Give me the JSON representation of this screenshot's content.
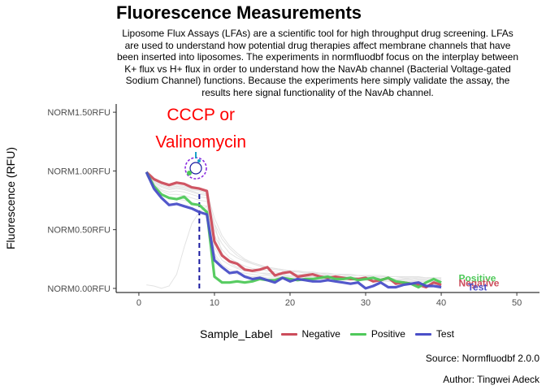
{
  "colors": {
    "negative": "#cc4c5b",
    "positive": "#4fc95a",
    "test": "#4a4fc8",
    "background_lines": "#e3e3e3",
    "annotation": "#ff0000",
    "marker_line": "#1a1aa0"
  },
  "chart_data": {
    "type": "line",
    "title": "Fluorescence Measurements",
    "subtitle": "Liposome Flux Assays (LFAs) are a scientific tool for high throughput drug screening. LFAs are used to understand how potential drug therapies affect membrane channels that have been inserted into liposomes. The experiments in normfluodbf focus on the interplay between K+ flux vs H+ flux in order to understand how the NavAb channel (Bacterial Voltage-gated Sodium Channel) functions. Because the experiments here simply validate the assay, the results here signal functionality of the NavAb channel.",
    "xlabel": "",
    "ylabel": "Fluorescence (RFU)",
    "xlim": [
      -3,
      53
    ],
    "ylim": [
      -0.035,
      1.57
    ],
    "x_ticks": [
      0,
      10,
      20,
      30,
      40,
      50
    ],
    "y_ticks": [
      {
        "value": 0.0,
        "label": "NORM0.00RFU"
      },
      {
        "value": 0.5,
        "label": "NORM0.50RFU"
      },
      {
        "value": 1.0,
        "label": "NORM1.00RFU"
      },
      {
        "value": 1.5,
        "label": "NORM1.50RFU"
      }
    ],
    "grid": false,
    "legend_title": "Sample_Label",
    "legend_position": "bottom",
    "x": [
      1,
      2,
      3,
      4,
      5,
      6,
      7,
      8,
      9,
      10,
      11,
      12,
      13,
      14,
      15,
      16,
      17,
      18,
      19,
      20,
      21,
      22,
      23,
      24,
      25,
      26,
      27,
      28,
      29,
      30,
      31,
      32,
      33,
      34,
      35,
      36,
      37,
      38,
      39,
      40
    ],
    "series": [
      {
        "name": "Negative",
        "color_key": "negative",
        "values": [
          0.99,
          0.93,
          0.9,
          0.88,
          0.9,
          0.89,
          0.86,
          0.85,
          0.83,
          0.4,
          0.28,
          0.23,
          0.21,
          0.16,
          0.15,
          0.16,
          0.18,
          0.11,
          0.13,
          0.14,
          0.1,
          0.11,
          0.12,
          0.1,
          0.09,
          0.1,
          0.09,
          0.08,
          0.08,
          0.09,
          0.06,
          0.07,
          0.09,
          0.04,
          0.05,
          0.04,
          0.03,
          0.01,
          0.05,
          0.03
        ]
      },
      {
        "name": "Positive",
        "color_key": "positive",
        "values": [
          0.99,
          0.87,
          0.8,
          0.77,
          0.76,
          0.78,
          0.72,
          0.71,
          0.65,
          0.1,
          0.05,
          0.05,
          0.06,
          0.05,
          0.06,
          0.08,
          0.07,
          0.07,
          0.09,
          0.08,
          0.07,
          0.08,
          0.08,
          0.09,
          0.1,
          0.08,
          0.08,
          0.09,
          0.07,
          0.08,
          0.09,
          0.07,
          0.09,
          0.06,
          0.05,
          0.04,
          0.01,
          0.05,
          0.08,
          0.05
        ]
      },
      {
        "name": "Test",
        "color_key": "test",
        "values": [
          0.99,
          0.85,
          0.77,
          0.71,
          0.72,
          0.7,
          0.68,
          0.65,
          0.63,
          0.24,
          0.18,
          0.13,
          0.14,
          0.1,
          0.08,
          0.09,
          0.07,
          0.05,
          0.09,
          0.06,
          0.08,
          0.07,
          0.06,
          0.06,
          0.07,
          0.06,
          0.05,
          0.04,
          0.05,
          0.0,
          0.02,
          0.05,
          0.01,
          0.01,
          0.03,
          0.04,
          0.05,
          0.02,
          0.02,
          0.01
        ]
      }
    ],
    "background_wells": [
      [
        0.03,
        0.02,
        0.0,
        0.02,
        0.12,
        0.35,
        0.55,
        0.65,
        0.7,
        0.55,
        0.3,
        0.22,
        0.18,
        0.16,
        0.14,
        0.13,
        0.12,
        0.12,
        0.11,
        0.11,
        0.1,
        0.1,
        0.1,
        0.09,
        0.1,
        0.09,
        0.1,
        0.09,
        0.09,
        0.08,
        0.09,
        0.08,
        0.09,
        0.08,
        0.08,
        0.09,
        0.08,
        0.08,
        0.09,
        0.08
      ],
      [
        0.98,
        0.9,
        0.86,
        0.84,
        0.85,
        0.84,
        0.82,
        0.8,
        0.79,
        0.45,
        0.33,
        0.26,
        0.22,
        0.19,
        0.17,
        0.16,
        0.15,
        0.14,
        0.13,
        0.13,
        0.12,
        0.12,
        0.11,
        0.11,
        0.11,
        0.1,
        0.1,
        0.1,
        0.09,
        0.09,
        0.09,
        0.09,
        0.08,
        0.08,
        0.08,
        0.08,
        0.07,
        0.07,
        0.07,
        0.07
      ],
      [
        0.97,
        0.88,
        0.83,
        0.8,
        0.8,
        0.79,
        0.77,
        0.75,
        0.74,
        0.35,
        0.24,
        0.2,
        0.17,
        0.15,
        0.14,
        0.13,
        0.13,
        0.12,
        0.12,
        0.11,
        0.11,
        0.1,
        0.1,
        0.1,
        0.09,
        0.09,
        0.09,
        0.09,
        0.08,
        0.08,
        0.08,
        0.08,
        0.07,
        0.07,
        0.07,
        0.07,
        0.06,
        0.06,
        0.06,
        0.06
      ],
      [
        0.99,
        0.92,
        0.88,
        0.86,
        0.87,
        0.86,
        0.84,
        0.83,
        0.81,
        0.5,
        0.38,
        0.3,
        0.26,
        0.23,
        0.21,
        0.19,
        0.18,
        0.17,
        0.16,
        0.15,
        0.14,
        0.14,
        0.13,
        0.13,
        0.12,
        0.12,
        0.12,
        0.11,
        0.11,
        0.11,
        0.1,
        0.1,
        0.1,
        0.1,
        0.09,
        0.09,
        0.09,
        0.09,
        0.09,
        0.08
      ],
      [
        0.96,
        0.86,
        0.8,
        0.76,
        0.76,
        0.75,
        0.73,
        0.71,
        0.7,
        0.3,
        0.2,
        0.16,
        0.14,
        0.13,
        0.12,
        0.11,
        0.11,
        0.1,
        0.1,
        0.1,
        0.09,
        0.09,
        0.09,
        0.09,
        0.08,
        0.08,
        0.08,
        0.08,
        0.08,
        0.07,
        0.07,
        0.07,
        0.07,
        0.07,
        0.06,
        0.06,
        0.06,
        0.06,
        0.06,
        0.06
      ],
      [
        0.98,
        0.91,
        0.87,
        0.85,
        0.86,
        0.85,
        0.83,
        0.81,
        0.8,
        0.55,
        0.42,
        0.34,
        0.28,
        0.24,
        0.21,
        0.19,
        0.17,
        0.16,
        0.15,
        0.14,
        0.14,
        0.13,
        0.13,
        0.12,
        0.12,
        0.12,
        0.11,
        0.11,
        0.11,
        0.1,
        0.1,
        0.1,
        0.1,
        0.1,
        0.09,
        0.09,
        0.09,
        0.09,
        0.09,
        0.09
      ],
      [
        0.97,
        0.89,
        0.84,
        0.82,
        0.83,
        0.82,
        0.8,
        0.78,
        0.77,
        0.28,
        0.18,
        0.14,
        0.12,
        0.11,
        0.1,
        0.1,
        0.09,
        0.09,
        0.09,
        0.08,
        0.08,
        0.08,
        0.08,
        0.08,
        0.07,
        0.07,
        0.07,
        0.07,
        0.07,
        0.07,
        0.06,
        0.06,
        0.06,
        0.06,
        0.06,
        0.06,
        0.06,
        0.06,
        0.05,
        0.05
      ],
      [
        0.99,
        0.93,
        0.89,
        0.87,
        0.88,
        0.87,
        0.85,
        0.84,
        0.82,
        0.6,
        0.45,
        0.36,
        0.3,
        0.25,
        0.22,
        0.2,
        0.18,
        0.17,
        0.16,
        0.15,
        0.15,
        0.14,
        0.14,
        0.13,
        0.13,
        0.12,
        0.12,
        0.12,
        0.11,
        0.11,
        0.11,
        0.11,
        0.1,
        0.1,
        0.1,
        0.1,
        0.1,
        0.09,
        0.09,
        0.09
      ]
    ],
    "end_labels": [
      {
        "text": "Positive",
        "color_key": "positive",
        "x": 42.3,
        "y": 0.085
      },
      {
        "text": "Negative",
        "color_key": "negative",
        "x": 42.3,
        "y": 0.045
      },
      {
        "text": "Test",
        "color_key": "test",
        "x": 43.5,
        "y": 0.01
      }
    ],
    "annotation": {
      "lines": [
        "CCCP or",
        "Valinomycin"
      ],
      "x": 8.2,
      "y_top": 1.43,
      "y_bottom": 1.2
    },
    "event_marker": {
      "x": 8,
      "y_from": 0.0,
      "y_to": 0.83
    }
  },
  "captions": {
    "source": "Source: Normfluodbf 2.0.0",
    "author": "Author: Tingwei Adeck"
  }
}
